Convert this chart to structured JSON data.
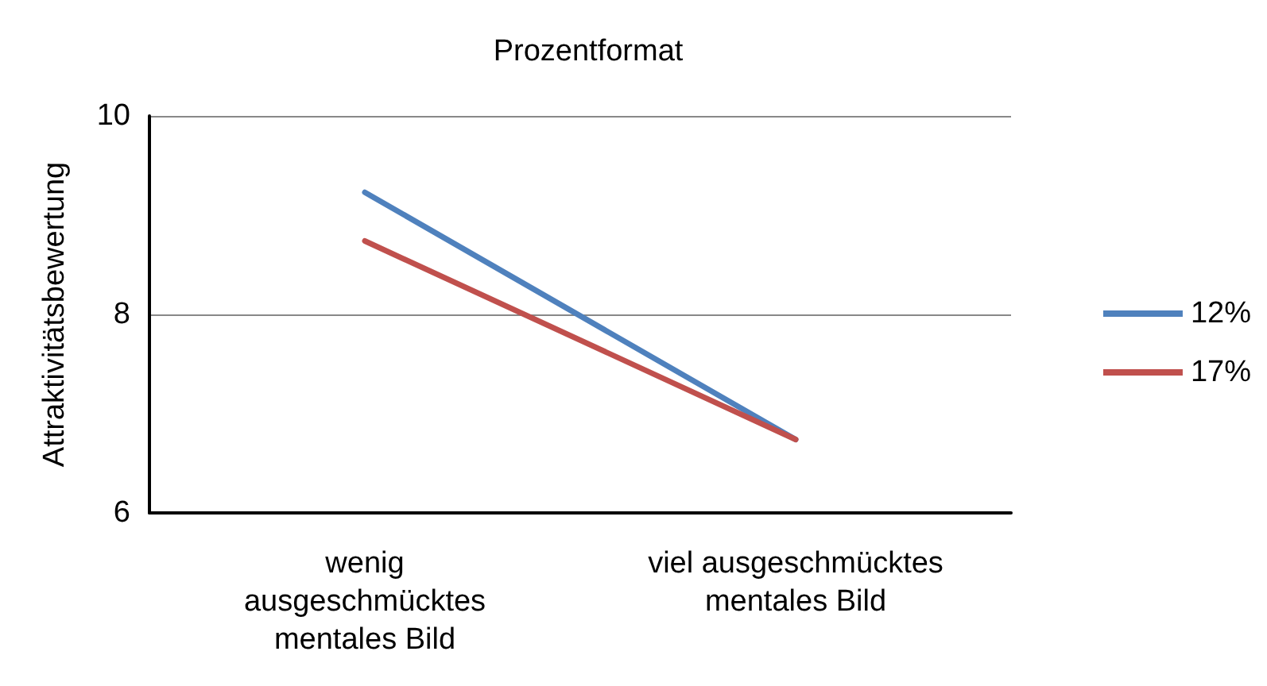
{
  "chart_data": {
    "type": "line",
    "title": "Prozentformat",
    "ylabel": "Attraktivitätsbewertung",
    "categories": [
      "wenig\nausgeschmücktes\nmentales Bild",
      "viel ausgeschmücktes\nmentales Bild"
    ],
    "series": [
      {
        "name": "12%",
        "color": "#4f81bd",
        "values": [
          9.23,
          6.74
        ]
      },
      {
        "name": "17%",
        "color": "#c0504d",
        "values": [
          8.74,
          6.74
        ]
      }
    ],
    "ylim": [
      6,
      10
    ],
    "yticks": [
      6,
      8,
      10
    ],
    "grid": "y",
    "legend": "right",
    "marker": "none"
  }
}
